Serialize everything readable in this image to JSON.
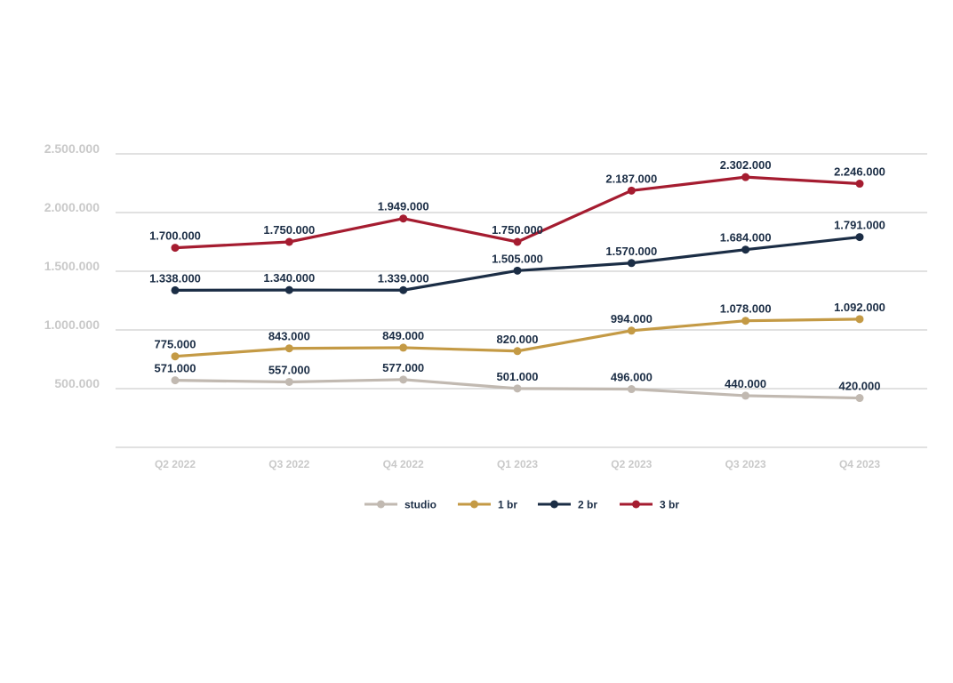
{
  "chart_data": {
    "type": "line",
    "title": "",
    "xlabel": "",
    "ylabel": "",
    "categories": [
      "Q2 2022",
      "Q3 2022",
      "Q4 2022",
      "Q1 2023",
      "Q2 2023",
      "Q3 2023",
      "Q4 2023"
    ],
    "ylim": [
      0,
      2500000
    ],
    "yticks": [
      500000,
      1000000,
      1500000,
      2000000,
      2500000
    ],
    "ytick_labels": [
      "500.000",
      "1.000.000",
      "1.500.000",
      "2.000.000",
      "2.500.000"
    ],
    "grid": true,
    "legend_position": "bottom",
    "series": [
      {
        "name": "studio",
        "color": "#c1b9b1",
        "values": [
          571000,
          557000,
          577000,
          501000,
          496000,
          440000,
          420000
        ],
        "labels": [
          "571.000",
          "557.000",
          "577.000",
          "501.000",
          "496.000",
          "440.000",
          "420.000"
        ]
      },
      {
        "name": "1 br",
        "color": "#c49a45",
        "values": [
          775000,
          843000,
          849000,
          820000,
          994000,
          1078000,
          1092000
        ],
        "labels": [
          "775.000",
          "843.000",
          "849.000",
          "820.000",
          "994.000",
          "1.078.000",
          "1.092.000"
        ]
      },
      {
        "name": "2 br",
        "color": "#1b2d45",
        "values": [
          1338000,
          1340000,
          1339000,
          1505000,
          1570000,
          1684000,
          1791000
        ],
        "labels": [
          "1.338.000",
          "1.340.000",
          "1.339.000",
          "1.505.000",
          "1.570.000",
          "1.684.000",
          "1.791.000"
        ]
      },
      {
        "name": "3 br",
        "color": "#a51c30",
        "values": [
          1700000,
          1750000,
          1949000,
          1750000,
          2187000,
          2302000,
          2246000
        ],
        "labels": [
          "1.700.000",
          "1.750.000",
          "1.949.000",
          "1.750.000",
          "2.187.000",
          "2.302.000",
          "2.246.000"
        ]
      }
    ]
  }
}
